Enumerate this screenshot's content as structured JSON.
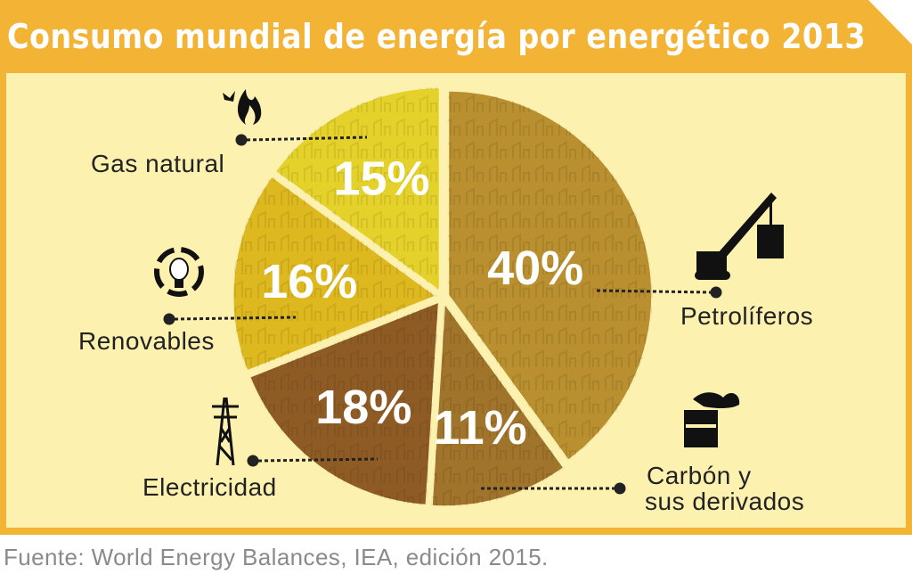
{
  "title": "Consumo mundial de energía por energético 2013",
  "source": "Fuente: World Energy Balances, IEA, edición 2015.",
  "colors": {
    "frame": "#f3b335",
    "panel": "#fdf1b0",
    "petroliferos": "#b98f2f",
    "carbon": "#a0742a",
    "electricidad": "#8f5b25",
    "renovables": "#ddb81e",
    "gas_natural": "#e4d22a"
  },
  "chart_data": {
    "type": "pie",
    "unit": "%",
    "slices": [
      {
        "label": "Petrolíferos",
        "value": 40,
        "value_label": "40%",
        "icon": "crane-icon"
      },
      {
        "label": "Carbón y sus derivados",
        "value": 11,
        "value_label": "11%",
        "icon": "factory-icon"
      },
      {
        "label": "Electricidad",
        "value": 18,
        "value_label": "18%",
        "icon": "power-tower-icon"
      },
      {
        "label": "Renovables",
        "value": 16,
        "value_label": "16%",
        "icon": "recycle-bulb-icon"
      },
      {
        "label": "Gas natural",
        "value": 15,
        "value_label": "15%",
        "icon": "flame-icon"
      }
    ]
  },
  "labels": {
    "petroliferos": "Petrolíferos",
    "carbon_line1": "Carbón y",
    "carbon_line2": "sus derivados",
    "electricidad": "Electricidad",
    "renovables": "Renovables",
    "gas_natural": "Gas natural"
  }
}
